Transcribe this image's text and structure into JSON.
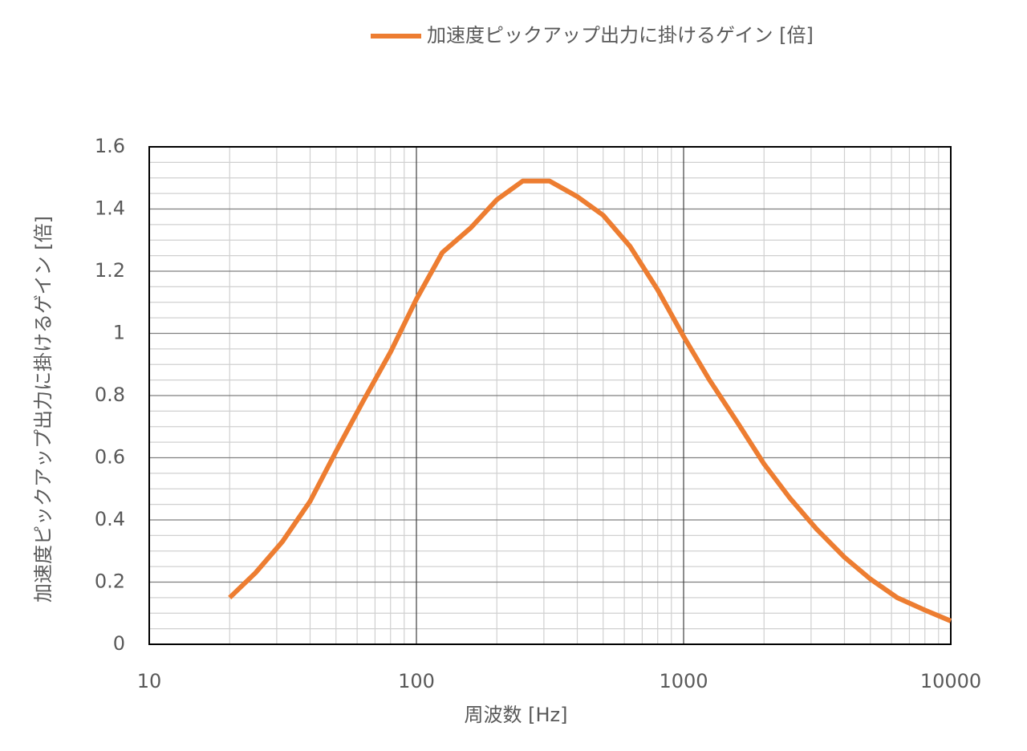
{
  "chart_data": {
    "type": "line",
    "title": null,
    "x_label": "周波数 [Hz]",
    "y_label": "加速度ピックアップ出力に掛けるゲイン [倍]",
    "x": [
      20,
      25,
      31.5,
      40,
      50,
      63,
      80,
      100,
      125,
      160,
      200,
      250,
      315,
      400,
      500,
      630,
      800,
      1000,
      1250,
      1600,
      2000,
      2500,
      3150,
      4000,
      5000,
      6300,
      8000,
      10000
    ],
    "series": [
      {
        "name": "加速度ピックアップ出力に掛けるゲイン [倍]",
        "color": "#ed7d31",
        "values": [
          0.15,
          0.23,
          0.33,
          0.46,
          0.62,
          0.78,
          0.94,
          1.11,
          1.26,
          1.34,
          1.43,
          1.49,
          1.49,
          1.44,
          1.38,
          1.28,
          1.14,
          0.99,
          0.85,
          0.71,
          0.58,
          0.47,
          0.37,
          0.28,
          0.21,
          0.15,
          0.11,
          0.075
        ]
      }
    ],
    "xlim": [
      10,
      10000
    ],
    "xticks": [
      10,
      100,
      1000,
      10000
    ],
    "x_log": true,
    "xminorticks": [
      20,
      30,
      40,
      50,
      60,
      70,
      80,
      90,
      200,
      300,
      400,
      500,
      600,
      700,
      800,
      900,
      2000,
      3000,
      4000,
      5000,
      6000,
      7000,
      8000,
      9000
    ],
    "ylim": [
      0,
      1.6
    ],
    "yticks": [
      0,
      0.2,
      0.4,
      0.6,
      0.8,
      1,
      1.2,
      1.4,
      1.6
    ],
    "yminorticks": [
      0.05,
      0.1,
      0.15,
      0.25,
      0.3,
      0.35,
      0.45,
      0.5,
      0.55,
      0.65,
      0.7,
      0.75,
      0.85,
      0.9,
      0.95,
      1.05,
      1.1,
      1.15,
      1.25,
      1.3,
      1.35,
      1.45,
      1.5,
      1.55
    ],
    "grid": true,
    "legend": "top-right"
  }
}
